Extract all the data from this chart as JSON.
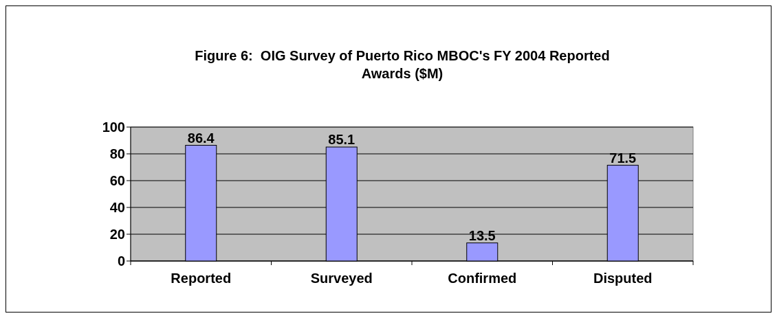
{
  "chart_data": {
    "type": "bar",
    "title": "Figure 6:  OIG Survey of Puerto Rico MBOC's FY 2004 Reported Awards ($M)",
    "categories": [
      "Reported",
      "Surveyed",
      "Confirmed",
      "Disputed"
    ],
    "values": [
      86.4,
      85.1,
      13.5,
      71.5
    ],
    "color": "#9999ff",
    "ylim": [
      0,
      100
    ],
    "yticks": [
      0,
      20,
      40,
      60,
      80,
      100
    ],
    "grid": "y",
    "data_labels": true
  }
}
